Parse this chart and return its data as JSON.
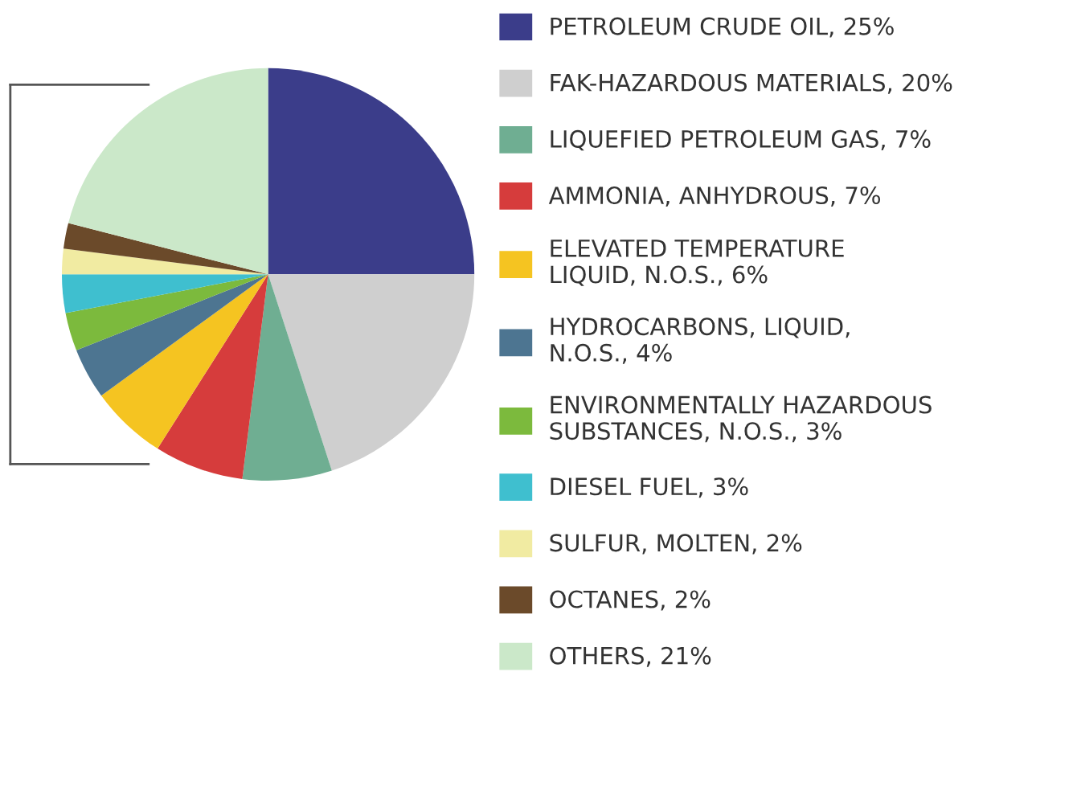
{
  "chart_data": {
    "type": "pie",
    "categories": [
      "PETROLEUM CRUDE OIL, 25%",
      "FAK-HAZARDOUS MATERIALS, 20%",
      "LIQUEFIED PETROLEUM GAS, 7%",
      "AMMONIA, ANHYDROUS, 7%",
      "ELEVATED TEMPERATURE\nLIQUID, N.O.S., 6%",
      "HYDROCARBONS, LIQUID,\nN.O.S., 4%",
      "ENVIRONMENTALLY HAZARDOUS\nSUBSTANCES, N.O.S., 3%",
      "DIESEL FUEL, 3%",
      "SULFUR, MOLTEN, 2%",
      "OCTANES, 2%",
      "OTHERS, 21%"
    ],
    "values": [
      25,
      20,
      7,
      7,
      6,
      4,
      3,
      3,
      2,
      2,
      21
    ],
    "colors": [
      "#3b3d8a",
      "#cfcfcf",
      "#6fae92",
      "#d63c3c",
      "#f5c421",
      "#4d7591",
      "#7cba3d",
      "#3fbfcf",
      "#f1eba2",
      "#6b4a2a",
      "#cbe8c9"
    ],
    "legend": "right"
  }
}
